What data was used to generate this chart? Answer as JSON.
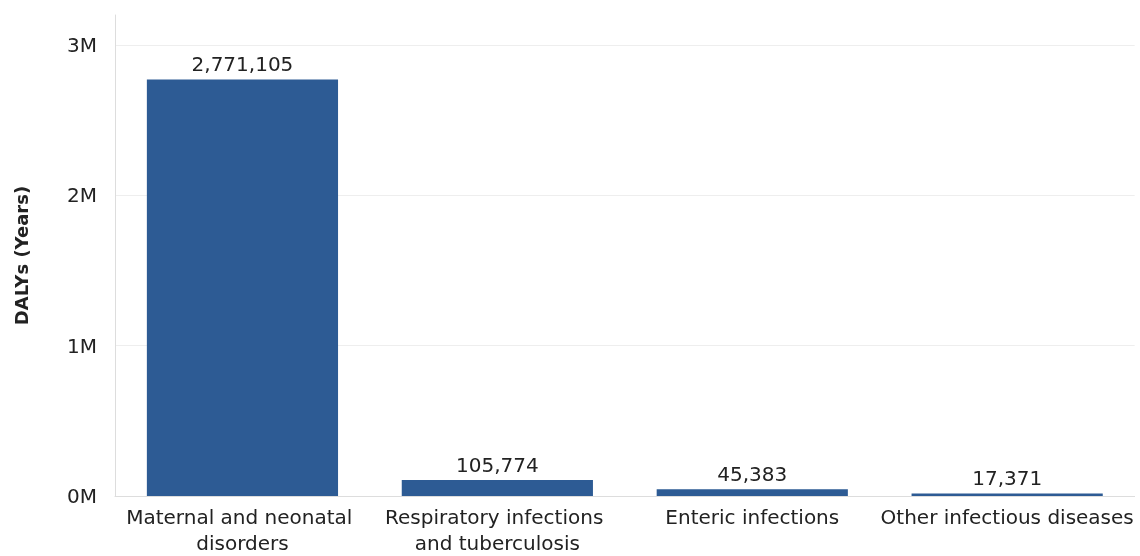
{
  "chart_data": {
    "type": "bar",
    "ylabel": "DALYs (Years)",
    "categories": [
      "Maternal and neonatal disorders",
      "Respiratory infections and tuberculosis",
      "Enteric infections",
      "Other infectious diseases"
    ],
    "values": [
      2771105,
      105774,
      45383,
      17371
    ],
    "color": "#2d5b94",
    "ylim": [
      0,
      3200000
    ],
    "yticks": [
      {
        "value": 0,
        "label": "0M"
      },
      {
        "value": 1000000,
        "label": "1M"
      },
      {
        "value": 2000000,
        "label": "2M"
      },
      {
        "value": 3000000,
        "label": "3M"
      }
    ],
    "value_labels": [
      "2,771,105",
      "105,774",
      "45,383",
      "17,371"
    ],
    "grid": "y"
  }
}
